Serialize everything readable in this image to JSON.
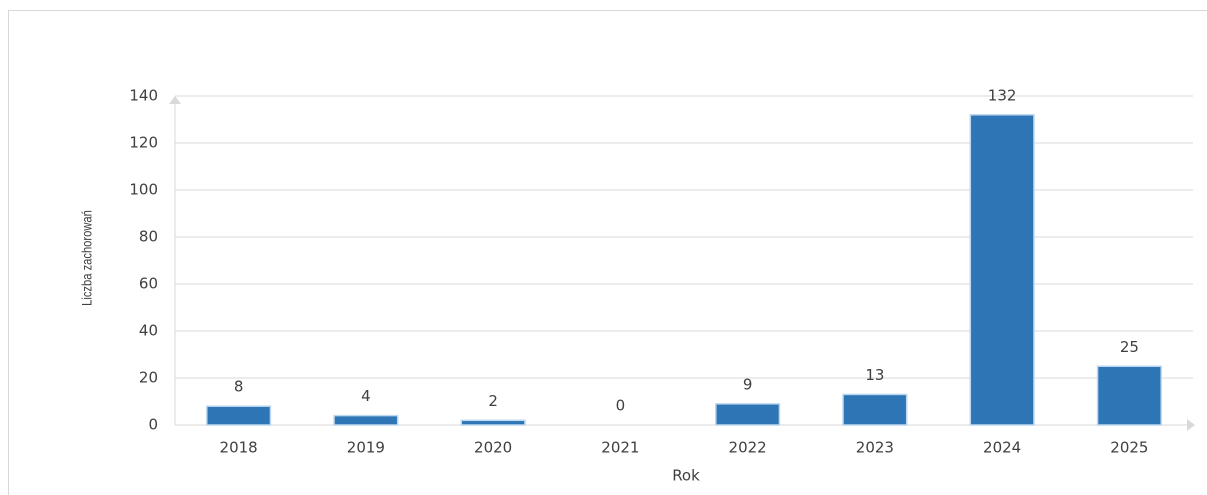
{
  "chart_data": {
    "type": "bar",
    "x_label": "Rok",
    "y_label": "Liczba zachorowań",
    "categories": [
      "2018",
      "2019",
      "2020",
      "2021",
      "2022",
      "2023",
      "2024",
      "2025"
    ],
    "values": [
      8,
      4,
      2,
      0,
      9,
      13,
      132,
      25
    ],
    "color": "#2e75b6",
    "ylim": [
      0,
      140
    ],
    "yticks": [
      0,
      20,
      40,
      60,
      80,
      100,
      120,
      140
    ],
    "grid": true
  }
}
